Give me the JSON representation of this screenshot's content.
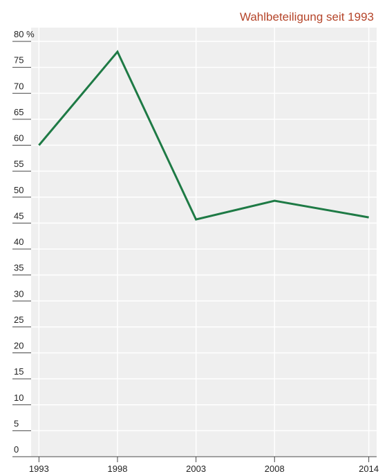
{
  "chart_data": {
    "type": "line",
    "title": "Wahlbeteiligung seit 1993",
    "x": [
      1993,
      1998,
      2003,
      2008,
      2014
    ],
    "series": [
      {
        "color": "#1e7a45",
        "values": [
          60,
          78,
          45.7,
          49.3,
          46.1
        ]
      }
    ],
    "xlim": [
      1992.5,
      2014.5
    ],
    "xticks": [
      1993,
      1998,
      2003,
      2008,
      2014
    ],
    "ylim": [
      0,
      80
    ],
    "yticks": [
      0,
      5,
      10,
      15,
      20,
      25,
      30,
      35,
      40,
      45,
      50,
      55,
      60,
      65,
      70,
      75,
      {
        "value": 80,
        "label": "80 %"
      }
    ],
    "grid": true,
    "background": "#efefef"
  }
}
